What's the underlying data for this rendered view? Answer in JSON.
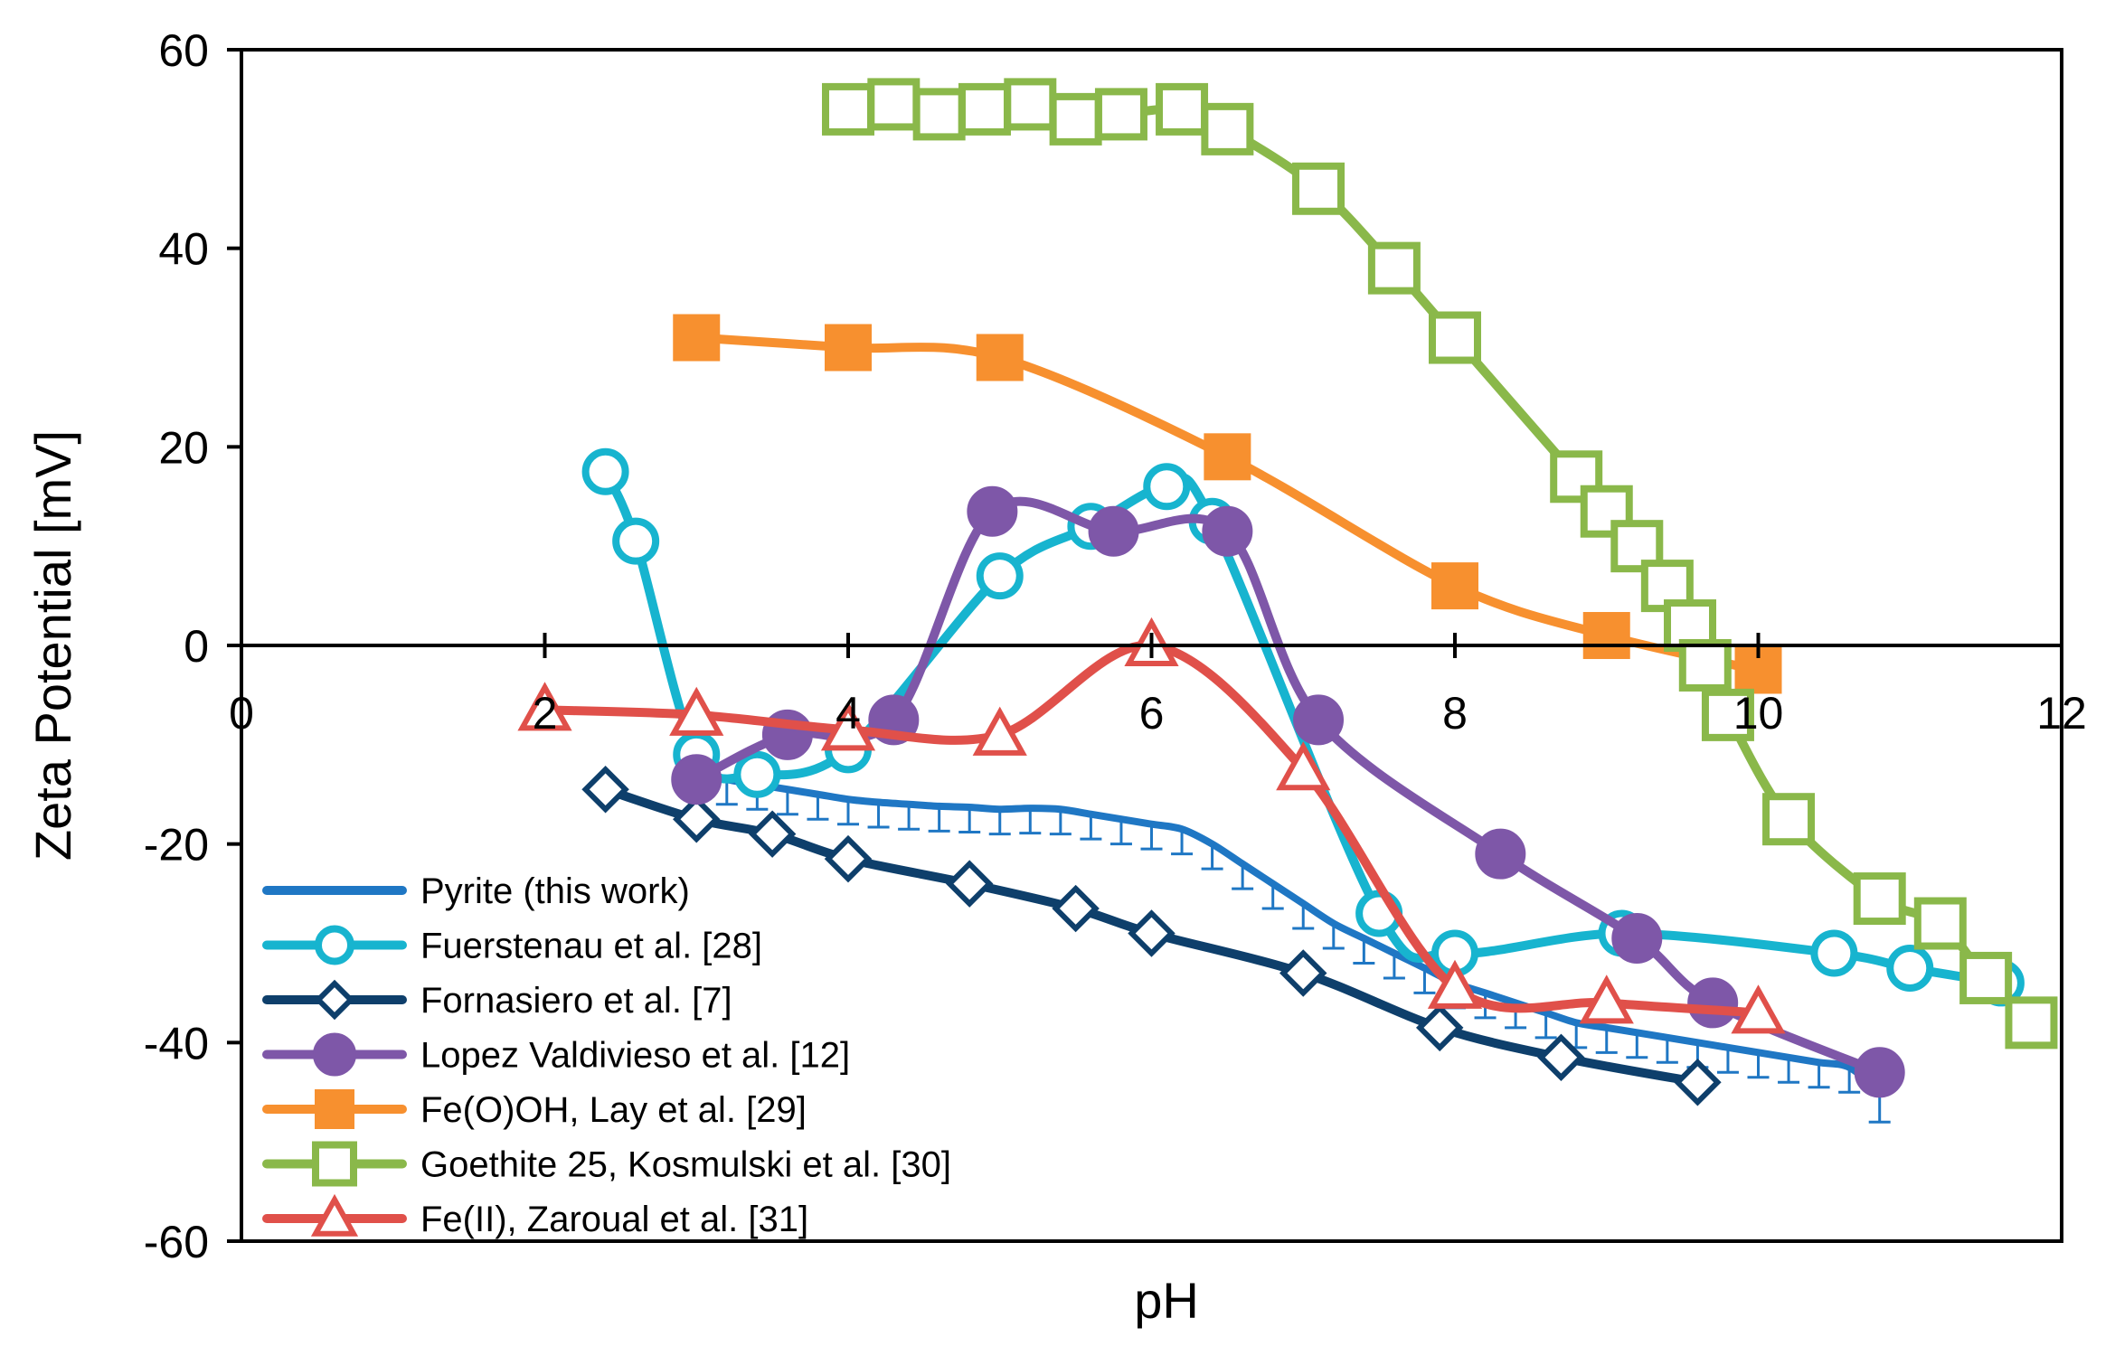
{
  "chart_data": {
    "type": "line",
    "title": "",
    "xlabel": "pH",
    "ylabel": "Zeta Potential [mV]",
    "xlim": [
      0,
      12
    ],
    "ylim": [
      -60,
      60
    ],
    "xticks": [
      0,
      2,
      4,
      6,
      8,
      10,
      12
    ],
    "yticks": [
      -60,
      -40,
      -20,
      0,
      20,
      40,
      60
    ],
    "grid": false,
    "legend_position": "bottom-left",
    "series": [
      {
        "name": "Pyrite (this work)",
        "color": "#1f77c4",
        "marker": "errorbar",
        "x": [
          3.0,
          3.2,
          3.4,
          3.6,
          3.8,
          4.0,
          4.2,
          4.4,
          4.6,
          4.8,
          5.0,
          5.2,
          5.4,
          5.6,
          5.8,
          6.0,
          6.2,
          6.4,
          6.6,
          6.8,
          7.0,
          7.2,
          7.4,
          7.6,
          7.8,
          8.0,
          8.2,
          8.4,
          8.6,
          8.8,
          9.0,
          9.2,
          9.4,
          9.6,
          9.8,
          10.0,
          10.2,
          10.4,
          10.6,
          10.8
        ],
        "y": [
          -12.5,
          -13.5,
          -14.0,
          -14.5,
          -15.0,
          -15.5,
          -15.8,
          -16.0,
          -16.2,
          -16.3,
          -16.5,
          -16.4,
          -16.5,
          -17.0,
          -17.5,
          -18.0,
          -18.5,
          -20.0,
          -22.0,
          -24.0,
          -26.0,
          -28.0,
          -29.5,
          -31.0,
          -32.5,
          -34.0,
          -35.0,
          -36.0,
          -37.0,
          -38.0,
          -38.5,
          -39.0,
          -39.5,
          -40.0,
          -40.5,
          -41.0,
          -41.5,
          -42.0,
          -42.5,
          -45.0
        ],
        "error": [
          2.5,
          2.5,
          2.5,
          2.5,
          2.5,
          2.5,
          2.5,
          2.5,
          2.5,
          2.5,
          2.5,
          2.5,
          2.5,
          2.5,
          2.5,
          2.5,
          2.5,
          2.5,
          2.5,
          2.5,
          2.5,
          2.5,
          2.5,
          2.5,
          2.5,
          2.5,
          2.5,
          2.5,
          2.5,
          2.5,
          2.5,
          2.5,
          2.5,
          2.5,
          2.5,
          2.5,
          2.5,
          2.5,
          2.5,
          3.0
        ]
      },
      {
        "name": "Fuerstenau et al. [28]",
        "color": "#17b4cf",
        "marker": "open-circle",
        "x": [
          2.4,
          2.6,
          3.0,
          3.4,
          4.0,
          5.0,
          5.6,
          6.1,
          6.4,
          7.5,
          8.0,
          9.1,
          10.5,
          11.0,
          11.6
        ],
        "y": [
          17.5,
          10.5,
          -11.0,
          -13.0,
          -10.5,
          7.0,
          12.0,
          16.0,
          12.5,
          -27.0,
          -31.0,
          -29.0,
          -31.0,
          -32.5,
          -34.0
        ]
      },
      {
        "name": "Fornasiero et al. [7]",
        "color": "#0e3f6b",
        "marker": "open-diamond",
        "x": [
          2.4,
          3.0,
          3.5,
          4.0,
          4.8,
          5.5,
          6.0,
          7.0,
          7.9,
          8.7,
          9.6
        ],
        "y": [
          -14.5,
          -17.5,
          -19.0,
          -21.5,
          -24.0,
          -26.5,
          -29.0,
          -33.0,
          -38.5,
          -41.5,
          -44.0
        ]
      },
      {
        "name": "Lopez Valdivieso et al. [12]",
        "color": "#7e57a8",
        "marker": "filled-circle",
        "x": [
          3.0,
          3.6,
          4.3,
          4.95,
          5.75,
          6.5,
          7.1,
          8.3,
          9.2,
          9.7,
          10.8
        ],
        "y": [
          -13.5,
          -9.0,
          -7.5,
          13.5,
          11.5,
          11.5,
          -7.5,
          -21.0,
          -29.5,
          -36.0,
          -43.0
        ]
      },
      {
        "name": "Fe(O)OH, Lay et al. [29]",
        "color": "#f7902f",
        "marker": "filled-square",
        "x": [
          3.0,
          4.0,
          5.0,
          6.5,
          8.0,
          9.0,
          10.0
        ],
        "y": [
          31.0,
          30.0,
          29.0,
          19.0,
          6.0,
          1.0,
          -2.5
        ]
      },
      {
        "name": "Goethite 25, Kosmulski et al. [30]",
        "color": "#8ab84a",
        "marker": "open-square",
        "x": [
          4.0,
          4.3,
          4.6,
          4.9,
          5.2,
          5.5,
          5.8,
          6.2,
          6.5,
          7.1,
          7.6,
          8.0,
          8.8,
          9.0,
          9.2,
          9.4,
          9.55,
          9.65,
          9.8,
          10.2,
          10.8,
          11.2,
          11.5,
          11.8
        ],
        "y": [
          54.0,
          54.5,
          53.5,
          54.0,
          54.5,
          53.0,
          53.5,
          54.0,
          52.0,
          46.0,
          38.0,
          31.0,
          17.0,
          13.5,
          10.0,
          6.0,
          2.0,
          -2.0,
          -7.0,
          -17.5,
          -25.5,
          -28.0,
          -33.5,
          -38.0
        ]
      },
      {
        "name": "Fe(II), Zaroual et al. [31]",
        "color": "#e0504a",
        "marker": "open-triangle",
        "x": [
          2.0,
          3.0,
          4.0,
          5.0,
          6.0,
          7.0,
          8.0,
          9.0,
          10.0
        ],
        "y": [
          -6.5,
          -7.0,
          -8.5,
          -9.0,
          0.0,
          -12.5,
          -34.5,
          -36.0,
          -37.0
        ]
      }
    ]
  }
}
